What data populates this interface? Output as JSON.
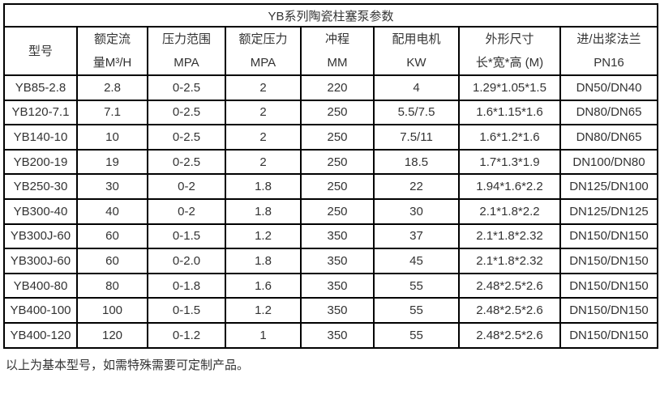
{
  "title": "YB系列陶瓷柱塞泵参数",
  "table": {
    "headers": [
      {
        "line1": "型号",
        "line2": ""
      },
      {
        "line1": "额定流",
        "line2": "量M³/H"
      },
      {
        "line1": "压力范围",
        "line2": "MPA"
      },
      {
        "line1": "额定压力",
        "line2": "MPA"
      },
      {
        "line1": "冲程",
        "line2": "MM"
      },
      {
        "line1": "配用电机",
        "line2": "KW"
      },
      {
        "line1": "外形尺寸",
        "line2": "长*宽*高 (M)"
      },
      {
        "line1": "进/出浆法兰",
        "line2": "PN16"
      }
    ],
    "rows": [
      [
        "YB85-2.8",
        "2.8",
        "0-2.5",
        "2",
        "220",
        "4",
        "1.29*1.05*1.5",
        "DN50/DN40"
      ],
      [
        "YB120-7.1",
        "7.1",
        "0-2.5",
        "2",
        "250",
        "5.5/7.5",
        "1.6*1.15*1.6",
        "DN80/DN65"
      ],
      [
        "YB140-10",
        "10",
        "0-2.5",
        "2",
        "250",
        "7.5/11",
        "1.6*1.2*1.6",
        "DN80/DN65"
      ],
      [
        "YB200-19",
        "19",
        "0-2.5",
        "2",
        "250",
        "18.5",
        "1.7*1.3*1.9",
        "DN100/DN80"
      ],
      [
        "YB250-30",
        "30",
        "0-2",
        "1.8",
        "250",
        "22",
        "1.94*1.6*2.2",
        "DN125/DN100"
      ],
      [
        "YB300-40",
        "40",
        "0-2",
        "1.8",
        "250",
        "30",
        "2.1*1.8*2.2",
        "DN125/DN125"
      ],
      [
        "YB300J-60",
        "60",
        "0-1.5",
        "1.2",
        "350",
        "37",
        "2.1*1.8*2.32",
        "DN150/DN150"
      ],
      [
        "YB300J-60",
        "60",
        "0-2.0",
        "1.8",
        "350",
        "45",
        "2.1*1.8*2.32",
        "DN150/DN150"
      ],
      [
        "YB400-80",
        "80",
        "0-1.8",
        "1.6",
        "350",
        "55",
        "2.48*2.5*2.6",
        "DN150/DN150"
      ],
      [
        "YB400-100",
        "100",
        "0-1.5",
        "1.2",
        "350",
        "55",
        "2.48*2.5*2.6",
        "DN150/DN150"
      ],
      [
        "YB400-120",
        "120",
        "0-1.2",
        "1",
        "350",
        "55",
        "2.48*2.5*2.6",
        "DN150/DN150"
      ]
    ]
  },
  "footnote": "以上为基本型号，如需特殊需要可定制产品。",
  "colors": {
    "border": "#000000",
    "text": "#333333",
    "background": "#ffffff"
  }
}
